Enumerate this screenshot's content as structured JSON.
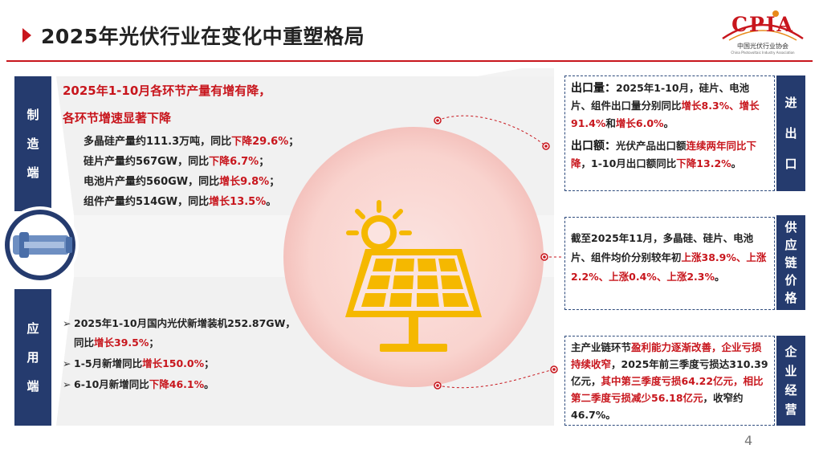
{
  "title": "2025年光伏行业在变化中重塑格局",
  "logo": {
    "name": "CPIA",
    "cn": "中国光伏行业协会",
    "en": "China Photovoltaic Industry Association"
  },
  "page_number": "4",
  "colors": {
    "accent": "#c8161d",
    "navy": "#253b6e",
    "sun": "#f5b800"
  },
  "icons": {
    "center": "solar-panel-sun-icon",
    "left": "telescope-lens-icon"
  },
  "manufacturing": {
    "label": [
      "制",
      "造",
      "端"
    ],
    "heading_1": "2025年1-10月各环节产量有增有降，",
    "heading_2": "各环节增速显著下降",
    "items": [
      {
        "text": "多晶硅产量约111.3万吨，同比",
        "hl": "下降29.6%",
        "end": "；"
      },
      {
        "text": "硅片产量约567GW，同比",
        "hl": "下降6.7%",
        "end": "；"
      },
      {
        "text": "电池片产量约560GW，同比",
        "hl": "增长9.8%",
        "end": "；"
      },
      {
        "text": "组件产量约514GW，同比",
        "hl": "增长13.5%",
        "end": "。"
      }
    ]
  },
  "application": {
    "label": [
      "应",
      "用",
      "端"
    ],
    "items": [
      {
        "marker": "➢",
        "line1": "2025年1-10月国内光伏新增装机252.87GW，",
        "line2": "同比",
        "hl": "增长39.5%",
        "end": "；"
      },
      {
        "marker": "➢",
        "text": "1-5月新增同比",
        "hl": "增长150.0%",
        "end": "；"
      },
      {
        "marker": "➢",
        "text": "6-10月新增同比",
        "hl": "下降46.1%",
        "end": "。"
      }
    ]
  },
  "import_export": {
    "label": [
      "进",
      "出",
      "口"
    ],
    "volume_label": "出口量：",
    "volume_text": "2025年1-10月，硅片、电池片、组件出口量分别同比",
    "volume_hl1": "增长8.3%、增长91.4%",
    "volume_and": "和",
    "volume_hl2": "增长6.0%",
    "volume_end": "。",
    "value_label": "出口额：",
    "value_text": "光伏产品出口额",
    "value_hl1": "连续两年同比下降",
    "value_text2": "，1-10月出口额同比",
    "value_hl2": "下降13.2%",
    "value_end": "。"
  },
  "supply_chain": {
    "label": [
      "供",
      "应",
      "链",
      "价",
      "格"
    ],
    "text": "截至2025年11月，多晶硅、硅片、电池片、组件均价分别较年初",
    "hl": "上涨38.9%、上涨2.2%、上涨0.4%、上涨2.3%",
    "end": "。"
  },
  "business": {
    "label": [
      "企",
      "业",
      "经",
      "营"
    ],
    "t1": "主产业链环节",
    "h1": "盈利能力逐渐改善，企业亏损持续收窄",
    "t2": "，2025年前三季度亏损达310.39亿元，",
    "h2": "其中第三季度亏损64.22亿元，相比第二季度亏损减少56.18亿元",
    "t3": "，收窄约46.7%。"
  }
}
